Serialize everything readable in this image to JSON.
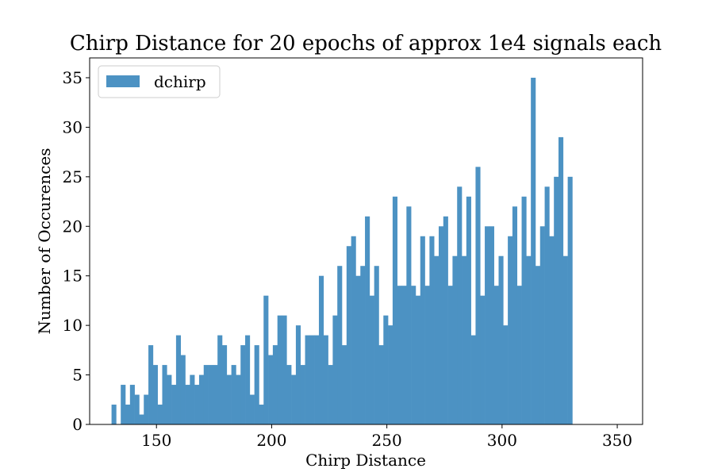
{
  "chart_data": {
    "type": "bar",
    "title": "Chirp Distance for 20 epochs of approx 1e4 signals each",
    "xlabel": "Chirp Distance",
    "ylabel": "Number of Occurences",
    "xlim": [
      121,
      361
    ],
    "ylim": [
      0,
      37
    ],
    "x_ticks": [
      "150",
      "200",
      "250",
      "300",
      "350"
    ],
    "y_ticks": [
      "0",
      "5",
      "10",
      "15",
      "20",
      "25",
      "30",
      "35"
    ],
    "bin_start": 130.5,
    "bin_width": 2,
    "values": [
      2,
      0,
      4,
      2,
      4,
      3,
      1,
      3,
      8,
      6,
      2,
      6,
      5,
      4,
      9,
      7,
      4,
      5,
      4,
      5,
      6,
      6,
      6,
      9,
      8,
      5,
      6,
      5,
      8,
      9,
      3,
      8,
      2,
      13,
      7,
      8,
      11,
      11,
      6,
      5,
      10,
      6,
      9,
      9,
      9,
      15,
      9,
      6,
      11,
      16,
      8,
      18,
      19,
      15,
      16,
      21,
      13,
      16,
      8,
      11,
      10,
      23,
      14,
      14,
      22,
      14,
      13,
      19,
      14,
      19,
      17,
      20,
      21,
      14,
      17,
      24,
      17,
      23,
      9,
      26,
      13,
      20,
      20,
      14,
      17,
      10,
      19,
      22,
      14,
      23,
      17,
      35,
      16,
      20,
      24,
      19,
      25,
      29,
      17,
      25
    ],
    "color": "#4c92c3",
    "legend": {
      "entries": [
        {
          "name": "dchirp",
          "color": "#4c92c3"
        }
      ],
      "location": "upper-left"
    },
    "grid": false
  }
}
